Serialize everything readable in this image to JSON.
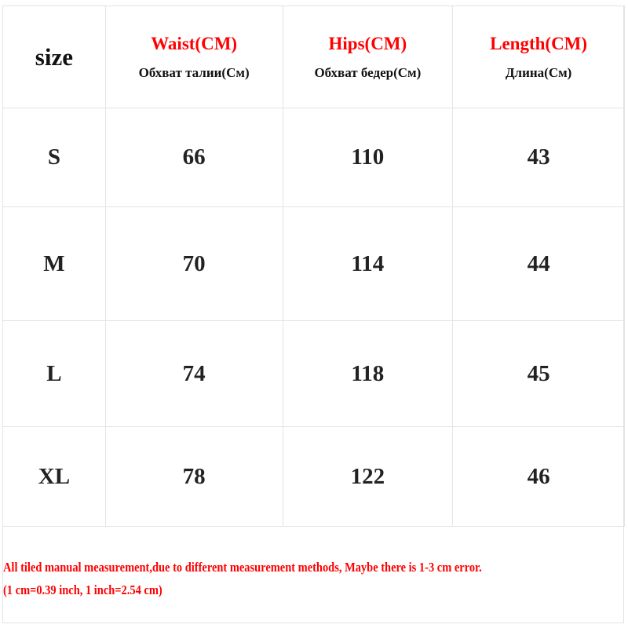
{
  "header": {
    "size_label": "size",
    "columns": [
      {
        "en": "Waist(CM)",
        "ru": "Обхват талии(См)"
      },
      {
        "en": "Hips(CM)",
        "ru": "Обхват бедер(См)"
      },
      {
        "en": "Length(CM)",
        "ru": "Длина(См)"
      }
    ]
  },
  "rows": [
    {
      "size": "S",
      "waist": "66",
      "hips": "110",
      "length": "43"
    },
    {
      "size": "M",
      "waist": "70",
      "hips": "114",
      "length": "44"
    },
    {
      "size": "L",
      "waist": "74",
      "hips": "118",
      "length": "45"
    },
    {
      "size": "XL",
      "waist": "78",
      "hips": "122",
      "length": "46"
    }
  ],
  "note": {
    "line1": "All tiled manual measurement,due to different measurement methods, Maybe there is 1-3 cm error.",
    "line2": "(1 cm=0.39 inch, 1 inch=2.54 cm)"
  },
  "colors": {
    "accent": "#ff0000",
    "text": "#222222",
    "grid": "#e4e4e4"
  }
}
